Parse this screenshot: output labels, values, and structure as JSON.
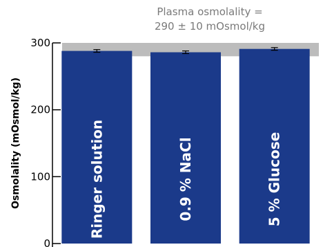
{
  "chart_data": {
    "type": "bar",
    "categories": [
      "Ringer solution",
      "0.9 % NaCl",
      "5 % Glucose"
    ],
    "values": [
      288,
      286,
      291
    ],
    "errors": [
      2,
      2,
      2
    ],
    "ylabel": "Osmolality (mOsmol/kg)",
    "ylim": [
      0,
      300
    ],
    "yticks": [
      0,
      100,
      200,
      300
    ],
    "band": {
      "low": 280,
      "high": 300
    },
    "annotation": [
      "Plasma osmolality =",
      "290 ± 10 mOsmol/kg"
    ],
    "grid": false
  },
  "colors": {
    "bar": "#1b3a8a",
    "band": "#bcbcbc",
    "axis": "#000000",
    "label": "#ffffff",
    "annotation": "#7a7a7a"
  }
}
